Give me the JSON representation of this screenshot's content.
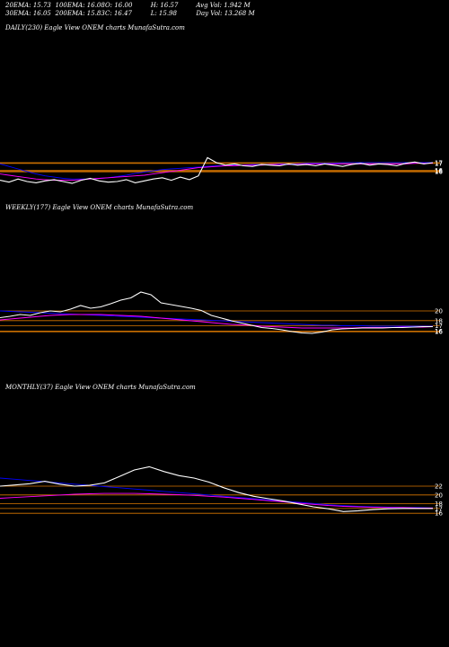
{
  "header": {
    "ema20": "20EMA: 15.73",
    "ema100": "100EMA: 16.08",
    "open": "O: 16.00",
    "high": "H: 16.57",
    "avg_vol": "Avg Vol: 1.942  M",
    "ema30": "30EMA: 16.05",
    "ema200": "200EMA: 15.83",
    "close": "C: 16.47",
    "low": "L: 15.98",
    "day_vol": "Day Vol: 13.268  M"
  },
  "panels": [
    {
      "title": "DAILY(230) Eagle  View  ONEM charts MunafaSutra.com",
      "right_labels": [
        "17",
        "17",
        "16",
        "16",
        "16"
      ]
    },
    {
      "title": "WEEKLY(177) Eagle  View  ONEM charts MunafaSutra.com",
      "right_labels": [
        "20",
        "18",
        "17",
        "16",
        "16"
      ]
    },
    {
      "title": "MONTHLY(37) Eagle  View  ONEM charts MunafaSutra.com",
      "right_labels": [
        "22",
        "20",
        "18",
        "17",
        "16"
      ]
    }
  ],
  "colors": {
    "price": "#ffffff",
    "ema_fast": "#0000ff",
    "ema_slow": "#ff00ff",
    "level": "#ff8c00",
    "background": "#000000"
  },
  "chart_data": [
    {
      "type": "line",
      "name": "daily",
      "ylim": [
        12,
        22
      ],
      "series": [
        {
          "values": [
            14.2,
            13.9,
            14.4,
            14.0,
            13.8,
            14.1,
            14.3,
            14.0,
            13.7,
            14.2,
            14.5,
            14.1,
            13.9,
            14.0,
            14.3,
            13.8,
            14.1,
            14.4,
            14.6,
            14.2,
            14.7,
            14.3,
            14.9,
            17.8,
            17.0,
            16.6,
            16.8,
            16.5,
            16.4,
            16.7,
            16.6,
            16.5,
            16.8,
            16.6,
            16.7,
            16.5,
            16.8,
            16.6,
            16.4,
            16.7,
            16.9,
            16.6,
            16.8,
            16.7,
            16.5,
            16.9,
            17.1,
            16.8,
            17.0
          ]
        },
        {
          "values": [
            16.8,
            16.4,
            16.0,
            15.6,
            15.2,
            14.9,
            14.7,
            14.5,
            14.4,
            14.4,
            14.4,
            14.5,
            14.6,
            14.8,
            15.0,
            15.3,
            15.5,
            15.7,
            15.9,
            16.0,
            16.1,
            16.2,
            16.3,
            16.4,
            16.5,
            16.5,
            16.6,
            16.6,
            16.7,
            16.7,
            16.7,
            16.8,
            16.8,
            16.8,
            16.9,
            16.9,
            16.9,
            16.9,
            17.0,
            17.0,
            17.0,
            17.0,
            17.0,
            17.0,
            17.0,
            17.0,
            17.0,
            17.0,
            17.0
          ]
        },
        {
          "values": [
            15.2,
            15.0,
            14.8,
            14.6,
            14.4,
            14.3,
            14.2,
            14.2,
            14.2,
            14.3,
            14.4,
            14.5,
            14.6,
            14.7,
            14.8,
            14.9,
            15.0,
            15.2,
            15.4,
            15.6,
            15.8,
            16.0,
            16.2,
            16.3,
            16.4,
            16.5,
            16.5,
            16.6,
            16.6,
            16.6,
            16.7,
            16.7,
            16.7,
            16.7,
            16.8,
            16.8,
            16.8,
            16.8,
            16.8,
            16.8,
            16.8,
            16.8,
            16.8,
            16.8,
            16.8,
            16.8,
            16.9,
            16.9,
            16.9
          ]
        }
      ]
    },
    {
      "type": "line",
      "name": "weekly",
      "ylim": [
        12,
        30
      ],
      "series": [
        {
          "values": [
            18.5,
            18.8,
            19.2,
            19.0,
            19.6,
            20.0,
            19.8,
            20.4,
            21.2,
            20.6,
            20.9,
            21.6,
            22.4,
            22.9,
            24.2,
            23.6,
            21.8,
            21.4,
            21.0,
            20.6,
            20.1,
            19.0,
            18.4,
            17.8,
            17.3,
            16.8,
            16.3,
            16.1,
            15.8,
            15.4,
            15.1,
            15.0,
            15.3,
            15.8,
            16.0,
            16.1,
            16.2,
            16.2,
            16.2,
            16.3,
            16.3,
            16.4,
            16.5,
            16.5
          ]
        },
        {
          "values": [
            20.0,
            19.9,
            19.8,
            19.7,
            19.6,
            19.5,
            19.4,
            19.3,
            19.2,
            19.1,
            19.0,
            18.9,
            18.8,
            18.7,
            18.6,
            18.5,
            18.4,
            18.3,
            18.2,
            18.1,
            18.0,
            17.9,
            17.8,
            17.7,
            17.6,
            17.5,
            17.4,
            17.3,
            17.2,
            17.1,
            17.0,
            16.9,
            16.8,
            16.8,
            16.7,
            16.7,
            16.7,
            16.6,
            16.6,
            16.6,
            16.6,
            16.6,
            16.6,
            16.6
          ]
        },
        {
          "values": [
            18.0,
            18.2,
            18.4,
            18.6,
            18.8,
            19.0,
            19.1,
            19.2,
            19.2,
            19.2,
            19.2,
            19.1,
            19.0,
            18.9,
            18.8,
            18.6,
            18.4,
            18.2,
            18.0,
            17.8,
            17.6,
            17.4,
            17.2,
            17.0,
            16.9,
            16.8,
            16.6,
            16.5,
            16.4,
            16.3,
            16.2,
            16.2,
            16.2,
            16.2,
            16.2,
            16.2,
            16.3,
            16.3,
            16.3,
            16.3,
            16.4,
            16.4,
            16.4,
            16.5
          ]
        }
      ]
    },
    {
      "type": "line",
      "name": "monthly",
      "ylim": [
        12,
        32
      ],
      "series": [
        {
          "values": [
            22.0,
            22.3,
            22.6,
            23.2,
            22.5,
            22.0,
            22.2,
            22.8,
            24.4,
            26.0,
            26.8,
            25.6,
            24.6,
            24.0,
            23.0,
            21.6,
            20.4,
            19.5,
            18.9,
            18.3,
            17.6,
            16.9,
            16.4,
            15.7,
            15.9,
            16.2,
            16.4,
            16.5,
            16.5,
            16.5
          ]
        },
        {
          "values": [
            24.0,
            23.7,
            23.4,
            23.1,
            22.8,
            22.5,
            22.2,
            21.9,
            21.6,
            21.3,
            21.0,
            20.7,
            20.4,
            20.1,
            19.8,
            19.5,
            19.2,
            18.9,
            18.6,
            18.3,
            18.0,
            17.7,
            17.4,
            17.2,
            17.0,
            16.9,
            16.8,
            16.7,
            16.7,
            16.6
          ]
        },
        {
          "values": [
            19.0,
            19.2,
            19.4,
            19.6,
            19.8,
            20.0,
            20.1,
            20.2,
            20.2,
            20.2,
            20.1,
            20.0,
            19.9,
            19.7,
            19.5,
            19.3,
            19.0,
            18.7,
            18.4,
            18.1,
            17.8,
            17.5,
            17.2,
            17.0,
            16.9,
            16.8,
            16.7,
            16.7,
            16.6,
            16.6
          ]
        }
      ]
    }
  ]
}
